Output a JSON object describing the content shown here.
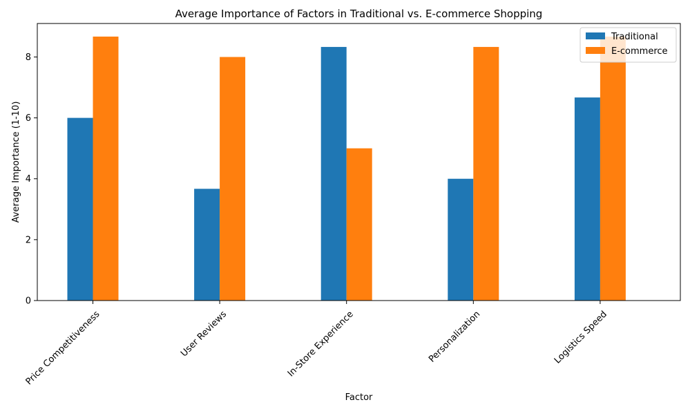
{
  "chart_data": {
    "type": "bar",
    "title": "Average Importance of Factors in Traditional vs. E-commerce Shopping",
    "xlabel": "Factor",
    "ylabel": "Average Importance (1-10)",
    "categories": [
      "Price Competitiveness",
      "User Reviews",
      "In-Store Experience",
      "Personalization",
      "Logistics Speed"
    ],
    "series": [
      {
        "name": "Traditional",
        "color": "#1f77b4",
        "values": [
          6.0,
          3.67,
          8.33,
          4.0,
          6.67
        ]
      },
      {
        "name": "E-commerce",
        "color": "#ff7f0e",
        "values": [
          8.67,
          8.0,
          5.0,
          8.33,
          8.67
        ]
      }
    ],
    "ylim": [
      0,
      9.1
    ],
    "yticks": [
      0,
      2,
      4,
      6,
      8
    ],
    "ytick_labels": [
      "0",
      "2",
      "4",
      "6",
      "8"
    ],
    "grid": false,
    "legend_position": "top-right",
    "xtick_rotation": 45
  }
}
